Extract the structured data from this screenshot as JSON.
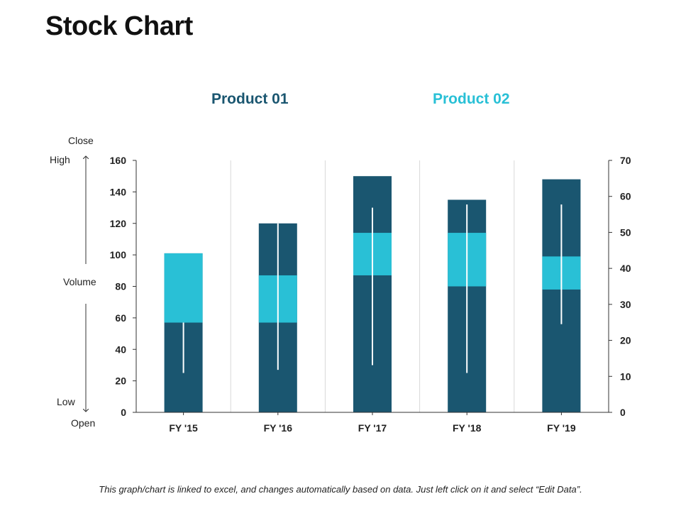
{
  "page": {
    "title": "Stock Chart",
    "footer": "This graph/chart is linked to excel, and changes automatically based on data.  Just left click on it and select “Edit Data”."
  },
  "legend": [
    {
      "label": "Product 01",
      "color": "#1a5670"
    },
    {
      "label": "Product 02",
      "color": "#29c0d6"
    }
  ],
  "axis_side_labels": {
    "close": "Close",
    "high": "High",
    "volume": "Volume",
    "low": "Low",
    "open": "Open"
  },
  "chart_data": {
    "type": "stock-volume-open-high-low-close",
    "categories": [
      "FY '15",
      "FY '16",
      "FY '17",
      "FY '18",
      "FY '19"
    ],
    "left_axis": {
      "ticks": [
        "0",
        "20",
        "40",
        "60",
        "80",
        "100",
        "120",
        "140",
        "160"
      ],
      "min": 0,
      "max": 160
    },
    "right_axis": {
      "ticks": [
        "0",
        "10",
        "20",
        "30",
        "40",
        "50",
        "60",
        "70"
      ],
      "min": 0,
      "max": 70
    },
    "volume": [
      101,
      120,
      150,
      135,
      148
    ],
    "body_low": [
      57,
      57,
      87,
      80,
      78
    ],
    "body_high": [
      101,
      87,
      114,
      114,
      99
    ],
    "wick_low": [
      25,
      27,
      30,
      25,
      56
    ],
    "wick_high": [
      57,
      120,
      130,
      132,
      132
    ],
    "colors": {
      "volume": "#1a5670",
      "body": "#29c0d6",
      "wick": "#ffffff",
      "grid": "#d8d8d8",
      "axis": "#333333"
    }
  }
}
